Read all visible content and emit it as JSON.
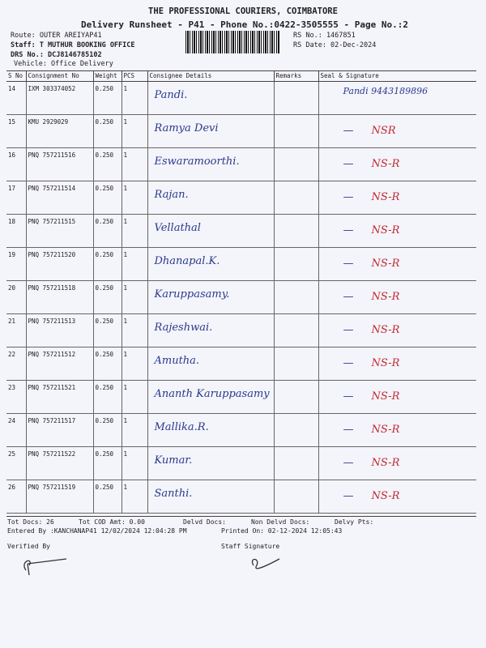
{
  "header": {
    "company": "THE PROFESSIONAL COURIERS, COIMBATORE",
    "title": "Delivery Runsheet - P41 - Phone No.:0422-3505555 - Page No.:2",
    "route": "Route: OUTER AREIYAP41",
    "staff": "Staff: T MUTHUR BOOKING OFFICE",
    "drs": "DRS No.: DCJ8146785102",
    "vehicle": "Vehicle: Office Delivery",
    "rs_no": "RS No.: 1467851",
    "rs_date": "RS Date: 02-Dec-2024"
  },
  "columns": [
    "S No",
    "Consignment No",
    "Weight",
    "PCS",
    "Consignee Details",
    "Remarks",
    "Seal & Signature"
  ],
  "rows": [
    {
      "sno": "14",
      "cn": "IXM 303374052",
      "wt": "0.250",
      "pcs": "1",
      "name": "Pandi.",
      "sig": "Pandi 9443189896"
    },
    {
      "sno": "15",
      "cn": "KMU 2929029",
      "wt": "0.250",
      "pcs": "1",
      "name": "Ramya Devi",
      "sig": "NSR"
    },
    {
      "sno": "16",
      "cn": "PNQ 757211516",
      "wt": "0.250",
      "pcs": "1",
      "name": "Eswaramoorthi.",
      "sig": "NS-R"
    },
    {
      "sno": "17",
      "cn": "PNQ 757211514",
      "wt": "0.250",
      "pcs": "1",
      "name": "Rajan.",
      "sig": "NS-R"
    },
    {
      "sno": "18",
      "cn": "PNQ 757211515",
      "wt": "0.250",
      "pcs": "1",
      "name": "Vellathal",
      "sig": "NS-R"
    },
    {
      "sno": "19",
      "cn": "PNQ 757211520",
      "wt": "0.250",
      "pcs": "1",
      "name": "Dhanapal.K.",
      "sig": "NS-R"
    },
    {
      "sno": "20",
      "cn": "PNQ 757211518",
      "wt": "0.250",
      "pcs": "1",
      "name": "Karuppasamy.",
      "sig": "NS-R"
    },
    {
      "sno": "21",
      "cn": "PNQ 757211513",
      "wt": "0.250",
      "pcs": "1",
      "name": "Rajeshwai.",
      "sig": "NS-R"
    },
    {
      "sno": "22",
      "cn": "PNQ 757211512",
      "wt": "0.250",
      "pcs": "1",
      "name": "Amutha.",
      "sig": "NS-R"
    },
    {
      "sno": "23",
      "cn": "PNQ 757211521",
      "wt": "0.250",
      "pcs": "1",
      "name": "Ananth Karuppasamy",
      "sig": "NS-R"
    },
    {
      "sno": "24",
      "cn": "PNQ 757211517",
      "wt": "0.250",
      "pcs": "1",
      "name": "Mallika.R.",
      "sig": "NS-R"
    },
    {
      "sno": "25",
      "cn": "PNQ 757211522",
      "wt": "0.250",
      "pcs": "1",
      "name": "Kumar.",
      "sig": "NS-R"
    },
    {
      "sno": "26",
      "cn": "PNQ 757211519",
      "wt": "0.250",
      "pcs": "1",
      "name": "Santhi.",
      "sig": "NS-R"
    }
  ],
  "footer": {
    "tot_docs": "Tot Docs:  26",
    "cod": "Tot COD Amt:   0.00",
    "delvd": "Delvd Docs:",
    "non_delvd": "Non Delvd Docs:",
    "pts": "Delvy Pts:",
    "entered": "Entered By :KANCHANAP41 12/02/2024 12:04:28 PM",
    "printed": "Printed On: 02-12-2024 12:05:43",
    "verified": "Verified By",
    "staff_sig": "Staff Signature"
  }
}
